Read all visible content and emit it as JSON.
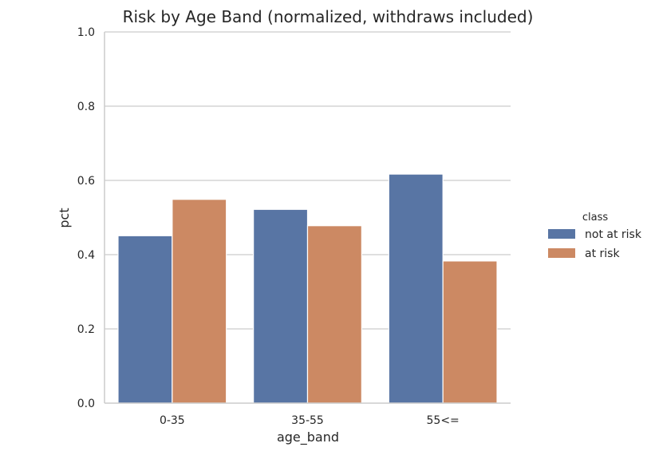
{
  "chart_data": {
    "type": "bar",
    "title": "Risk by Age Band (normalized, withdraws included)",
    "xlabel": "age_band",
    "ylabel": "pct",
    "ylim": [
      0,
      1.0
    ],
    "yticks": [
      "0.0",
      "0.2",
      "0.4",
      "0.6",
      "0.8",
      "1.0"
    ],
    "categories": [
      "0-35",
      "35-55",
      "55<="
    ],
    "grid": "horizontal",
    "legend": {
      "title": "class",
      "placement": "right"
    },
    "series": [
      {
        "name": "not at risk",
        "color": "#5875a4",
        "values": [
          0.451,
          0.522,
          0.617
        ]
      },
      {
        "name": "at risk",
        "color": "#cc8963",
        "values": [
          0.549,
          0.478,
          0.383
        ]
      }
    ]
  }
}
